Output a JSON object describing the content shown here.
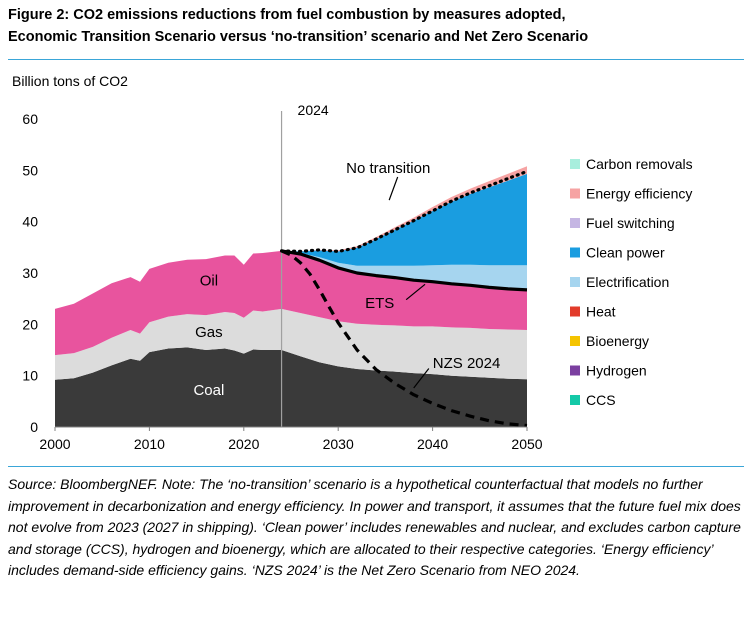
{
  "title_line1": "Figure 2: CO2 emissions reductions from fuel combustion by measures adopted,",
  "title_line2": "Economic Transition Scenario versus ‘no-transition’ scenario and Net Zero Scenario",
  "source_text": "Source: BloombergNEF. Note: The ‘no-transition’ scenario is a hypothetical counterfactual that models no further improvement in decarbonization and energy efficiency. In power and transport, it assumes that the future fuel mix does not evolve from 2023 (2027 in shipping). ‘Clean power’ includes renewables and nuclear, and excludes carbon capture and storage (CCS), hydrogen and bioenergy, which are allocated to their respective categories. ‘Energy efficiency’ includes demand-side efficiency gains. ‘NZS 2024’ is the Net Zero Scenario from NEO 2024.",
  "chart_data": {
    "type": "area",
    "ylabel": "Billion tons of CO2",
    "xlim": [
      2000,
      2050
    ],
    "ylim": [
      0,
      60
    ],
    "xticks": [
      2000,
      2010,
      2020,
      2030,
      2040,
      2050
    ],
    "yticks": [
      0,
      10,
      20,
      30,
      40,
      50,
      60
    ],
    "grid": false,
    "legend_position": "right",
    "vline": {
      "x": 2024,
      "label": "2024"
    },
    "x": [
      2000,
      2002,
      2004,
      2006,
      2008,
      2009,
      2010,
      2012,
      2014,
      2016,
      2018,
      2019,
      2020,
      2021,
      2022,
      2024,
      2026,
      2028,
      2030,
      2032,
      2034,
      2036,
      2038,
      2040,
      2042,
      2044,
      2046,
      2048,
      2050
    ],
    "stacked_series": [
      {
        "name": "Coal",
        "label": "Coal",
        "color": "#3a3a3a",
        "values": [
          9.2,
          9.5,
          10.6,
          12.0,
          13.3,
          12.9,
          14.6,
          15.3,
          15.5,
          15.0,
          15.3,
          14.9,
          14.3,
          15.1,
          15.0,
          15.0,
          13.8,
          12.6,
          11.8,
          11.3,
          11.0,
          10.8,
          10.5,
          10.3,
          10.0,
          9.8,
          9.6,
          9.4,
          9.3
        ]
      },
      {
        "name": "Gas",
        "label": "Gas",
        "color": "#dcdcdc",
        "values": [
          4.8,
          4.9,
          5.0,
          5.4,
          5.6,
          5.3,
          5.8,
          6.2,
          6.5,
          6.8,
          7.1,
          7.3,
          7.0,
          7.6,
          7.5,
          8.0,
          8.4,
          8.8,
          8.8,
          8.8,
          8.9,
          9.0,
          9.1,
          9.3,
          9.4,
          9.5,
          9.5,
          9.6,
          9.6
        ]
      },
      {
        "name": "Oil",
        "label": "Oil",
        "color": "#e8549e",
        "values": [
          9.0,
          9.6,
          10.4,
          10.6,
          10.3,
          10.1,
          10.4,
          10.5,
          10.6,
          10.9,
          11.0,
          11.2,
          10.3,
          11.1,
          11.4,
          11.3,
          11.5,
          11.1,
          10.4,
          9.9,
          9.6,
          9.3,
          9.0,
          8.7,
          8.5,
          8.3,
          8.1,
          7.9,
          7.8
        ]
      }
    ],
    "reduction_x": [
      2024,
      2026,
      2028,
      2030,
      2032,
      2034,
      2036,
      2038,
      2040,
      2042,
      2044,
      2046,
      2048,
      2050
    ],
    "reduction_series": [
      {
        "name": "CCS",
        "color": "#14c9a8",
        "values": [
          0,
          0,
          0,
          0,
          0,
          0,
          0,
          0,
          0,
          0,
          0,
          0,
          0,
          0
        ]
      },
      {
        "name": "Hydrogen",
        "color": "#7b3fa0",
        "values": [
          0,
          0,
          0,
          0,
          0,
          0,
          0,
          0,
          0,
          0,
          0,
          0,
          0,
          0
        ]
      },
      {
        "name": "Bioenergy",
        "color": "#f5c400",
        "values": [
          0,
          0,
          0,
          0,
          0,
          0,
          0,
          0,
          0,
          0,
          0,
          0,
          0,
          0
        ]
      },
      {
        "name": "Heat",
        "color": "#e23b2a",
        "values": [
          0,
          0,
          0,
          0,
          0,
          0,
          0,
          0,
          0,
          0,
          0,
          0,
          0,
          0
        ]
      },
      {
        "name": "Electrification",
        "color": "#a6d5ef",
        "values": [
          0,
          0.2,
          0.6,
          1.0,
          1.4,
          1.9,
          2.3,
          2.8,
          3.2,
          3.7,
          4.0,
          4.3,
          4.6,
          4.8
        ]
      },
      {
        "name": "Clean power",
        "color": "#1a9de0",
        "values": [
          0,
          0.3,
          1.3,
          2.2,
          3.5,
          5.2,
          7.0,
          8.8,
          10.6,
          12.3,
          13.8,
          15.2,
          16.5,
          17.8
        ]
      },
      {
        "name": "Fuel switching",
        "color": "#c5b6e3",
        "values": [
          0,
          0,
          0,
          0,
          0,
          0,
          0,
          0,
          0,
          0,
          0,
          0,
          0,
          0
        ]
      },
      {
        "name": "Energy efficiency",
        "color": "#f6a3a3",
        "values": [
          0,
          0.05,
          0.1,
          0.2,
          0.3,
          0.4,
          0.5,
          0.6,
          0.75,
          0.9,
          1.05,
          1.2,
          1.35,
          1.5
        ]
      },
      {
        "name": "Carbon removals",
        "color": "#a8eedd",
        "values": [
          0,
          0,
          0,
          0,
          0,
          0,
          0,
          0,
          0,
          0,
          0,
          0,
          0,
          0
        ]
      }
    ],
    "legend_order": [
      "Carbon removals",
      "Energy efficiency",
      "Fuel switching",
      "Clean power",
      "Electrification",
      "Heat",
      "Bioenergy",
      "Hydrogen",
      "CCS"
    ],
    "lines": [
      {
        "name": "ETS",
        "label": "ETS",
        "style": "solid",
        "color": "#000000",
        "x": [
          2024,
          2026,
          2028,
          2030,
          2032,
          2034,
          2036,
          2038,
          2040,
          2042,
          2044,
          2046,
          2048,
          2050
        ],
        "values": [
          34.3,
          33.7,
          32.5,
          31.0,
          30.0,
          29.5,
          29.1,
          28.6,
          28.3,
          27.9,
          27.6,
          27.2,
          26.9,
          26.7
        ]
      },
      {
        "name": "No transition",
        "label": "No transition",
        "style": "dotted",
        "color": "#000000",
        "x": [
          2024,
          2026,
          2028,
          2030,
          2032,
          2034,
          2036,
          2038,
          2040,
          2042,
          2044,
          2046,
          2048,
          2050
        ],
        "values": [
          34.3,
          34.2,
          34.5,
          34.2,
          34.9,
          36.6,
          38.4,
          40.2,
          42.1,
          44.0,
          45.6,
          47.0,
          48.4,
          49.8
        ]
      },
      {
        "name": "NZS 2024",
        "label": "NZS 2024",
        "style": "dashed",
        "color": "#000000",
        "x": [
          2024,
          2025,
          2026,
          2027,
          2028,
          2029,
          2030,
          2032,
          2034,
          2036,
          2038,
          2040,
          2042,
          2044,
          2046,
          2048,
          2050
        ],
        "values": [
          34.3,
          33.5,
          32.0,
          29.8,
          26.8,
          23.5,
          20.3,
          15.0,
          11.2,
          8.5,
          6.3,
          4.6,
          3.2,
          2.1,
          1.2,
          0.6,
          0.3
        ]
      }
    ]
  }
}
